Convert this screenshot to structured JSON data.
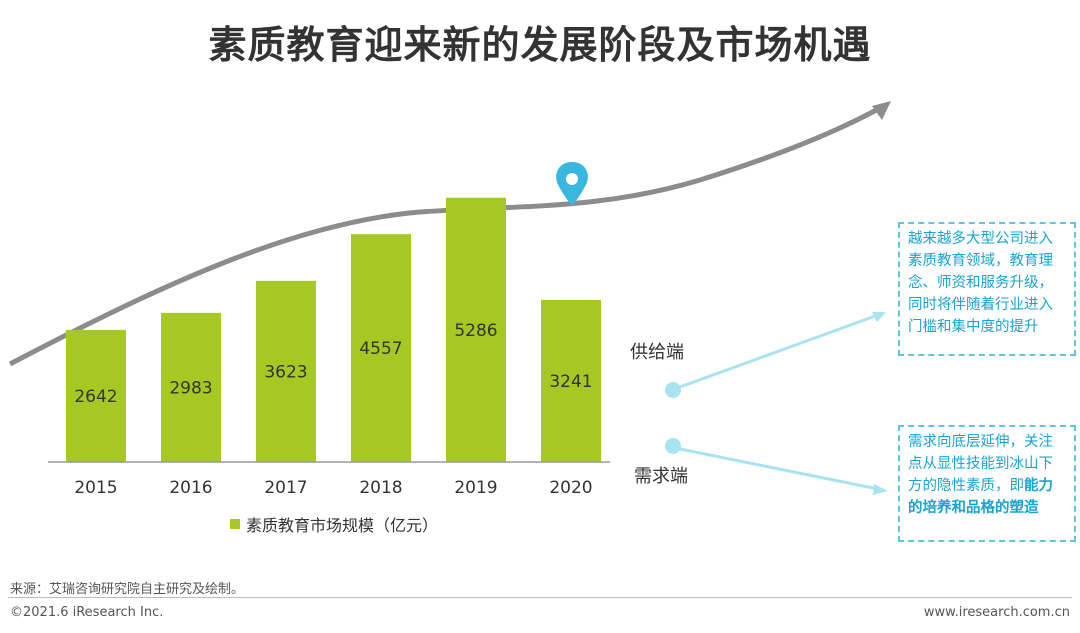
{
  "title": "素质教育迎来新的发展阶段及市场机遇",
  "chart_data": {
    "type": "bar",
    "categories": [
      "2015",
      "2016",
      "2017",
      "2018",
      "2019",
      "2020"
    ],
    "values": [
      2642,
      2983,
      3623,
      4557,
      5286,
      3241
    ],
    "series_name": "素质教育市场规模（亿元）",
    "ylim": [
      0,
      6000
    ],
    "bar_color": "#a6c822"
  },
  "labels": {
    "supply": "供给端",
    "demand": "需求端"
  },
  "supply_box": {
    "text": "越来越多大型公司进入素质教育领域，教育理念、师资和服务升级，同时将伴随着行业进入门槛和集中度的提升"
  },
  "demand_box": {
    "text_plain": "需求向底层延伸，关注点从显性技能到冰山下方的隐性素质，即",
    "text_bold": "能力的培养和品格的塑造"
  },
  "footer": {
    "source": "来源：艾瑞咨询研究院自主研究及绘制。",
    "copyright": "©2021.6 iResearch Inc.",
    "website": "www.iresearch.com.cn"
  },
  "colors": {
    "accent": "#5cc6e0",
    "curve": "#8c8c8c"
  }
}
